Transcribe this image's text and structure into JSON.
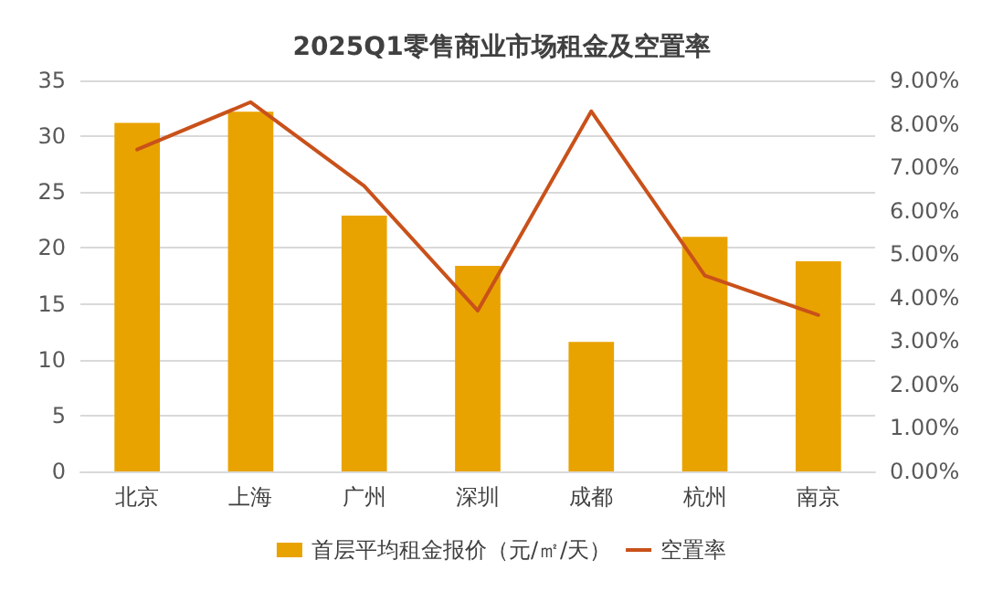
{
  "chart_data": {
    "type": "bar",
    "title": "2025Q1零售商业市场租金及空置率",
    "categories": [
      "北京",
      "上海",
      "广州",
      "深圳",
      "成都",
      "杭州",
      "南京"
    ],
    "series": [
      {
        "name": "首层平均租金报价（元/㎡/天）",
        "color": "#e9a300",
        "values": [
          31.2,
          32.2,
          22.9,
          18.4,
          11.6,
          21.0,
          18.8
        ]
      },
      {
        "name": "空置率",
        "type": "line",
        "axis": "y2",
        "color": "#c9511a",
        "marker": "none",
        "line_style": "solid",
        "values": [
          7.41,
          8.5,
          6.57,
          3.7,
          8.29,
          4.51,
          3.6
        ]
      }
    ],
    "ylim": [
      0,
      35
    ],
    "yticks": [
      0,
      5,
      10,
      15,
      20,
      25,
      30,
      35
    ],
    "y2lim": [
      0,
      9
    ],
    "y2ticks": [
      {
        "value": 0,
        "label": "0.00%"
      },
      {
        "value": 1,
        "label": "1.00%"
      },
      {
        "value": 2,
        "label": "2.00%"
      },
      {
        "value": 3,
        "label": "3.00%"
      },
      {
        "value": 4,
        "label": "4.00%"
      },
      {
        "value": 5,
        "label": "5.00%"
      },
      {
        "value": 6,
        "label": "6.00%"
      },
      {
        "value": 7,
        "label": "7.00%"
      },
      {
        "value": 8,
        "label": "8.00%"
      },
      {
        "value": 9,
        "label": "9.00%"
      }
    ],
    "grid": "y",
    "legend": "bottom"
  }
}
